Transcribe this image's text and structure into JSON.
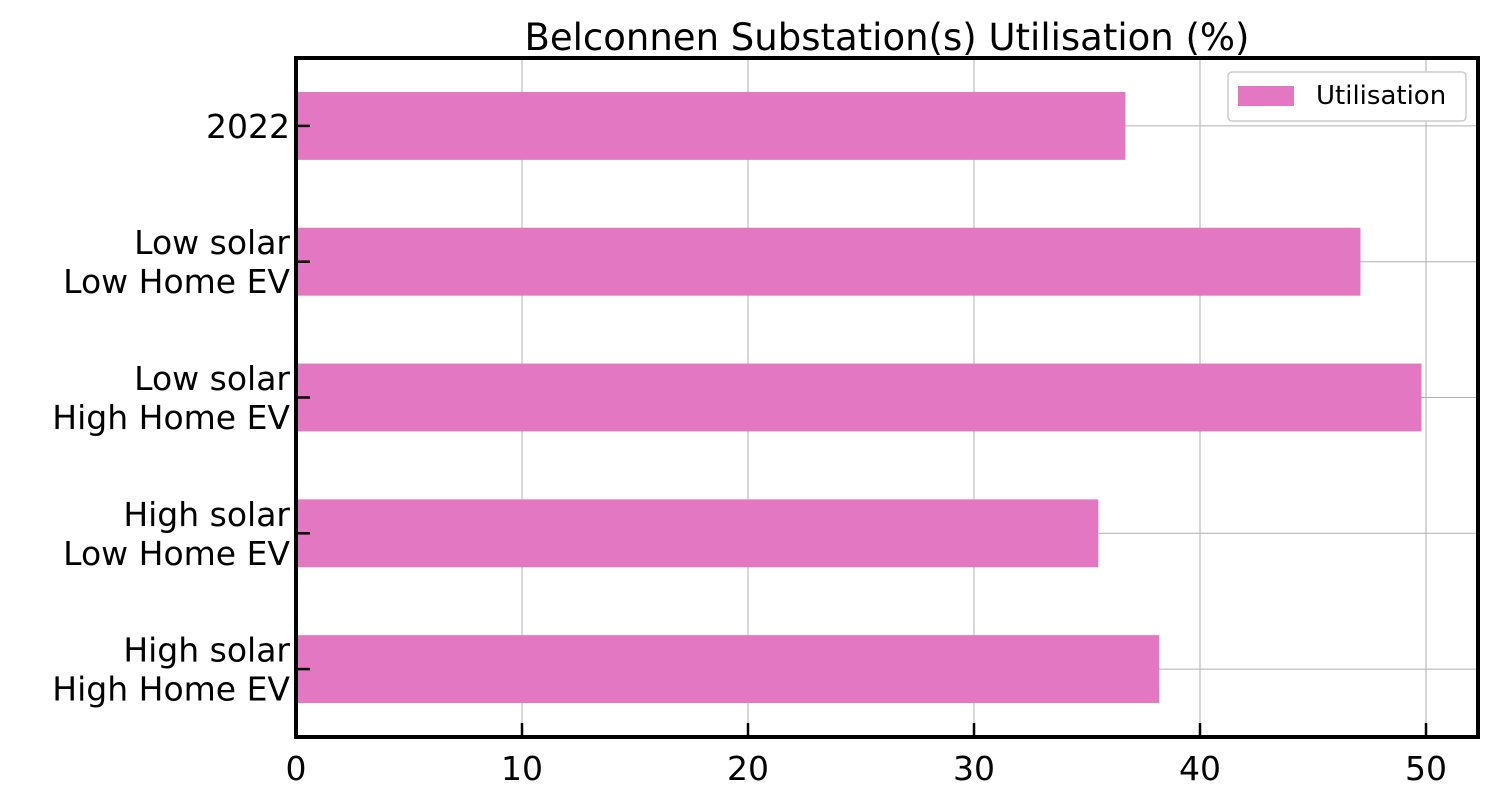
{
  "chart_data": {
    "type": "bar",
    "orientation": "horizontal",
    "title": "Belconnen Substation(s) Utilisation (%)",
    "xlabel": "",
    "ylabel": "",
    "categories": [
      [
        "2022"
      ],
      [
        "Low solar",
        "Low Home EV"
      ],
      [
        "Low solar",
        "High Home EV"
      ],
      [
        "High solar",
        "Low Home EV"
      ],
      [
        "High solar",
        "High Home EV"
      ]
    ],
    "series": [
      {
        "name": "Utilisation",
        "values": [
          36.7,
          47.1,
          49.8,
          35.5,
          38.2
        ],
        "color": "#e377c2"
      }
    ],
    "xlim": [
      0,
      52.3
    ],
    "xticks": [
      "0",
      "10",
      "20",
      "30",
      "40",
      "50"
    ],
    "grid": true,
    "legend": "top-right"
  }
}
